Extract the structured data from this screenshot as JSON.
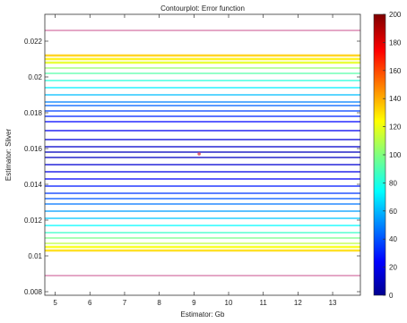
{
  "chart_data": {
    "type": "contour",
    "title": "Contourplot: Error function",
    "xlabel": "Estimator: Gb",
    "ylabel": "Estimator: Sliver",
    "xlim": [
      4.7,
      13.8
    ],
    "ylim": [
      0.0078,
      0.0235
    ],
    "x_ticks": [
      5,
      6,
      7,
      8,
      9,
      10,
      11,
      12,
      13
    ],
    "y_ticks": [
      0.008,
      0.01,
      0.012,
      0.014,
      0.016,
      0.018,
      0.02,
      0.022
    ],
    "y_tick_labels": [
      "0.008",
      "0.01",
      "0.012",
      "0.014",
      "0.016",
      "0.018",
      "0.02",
      "0.022"
    ],
    "colorbar": {
      "range": [
        0,
        200
      ],
      "ticks": [
        0,
        20,
        40,
        60,
        80,
        100,
        120,
        140,
        160,
        180,
        200
      ],
      "colormap": "jet"
    },
    "grid": false,
    "minimum_marker": {
      "x": 9.15,
      "y": 0.0157,
      "color": "#e06070"
    },
    "contour_levels": [
      {
        "y": 0.0226,
        "value": 200
      },
      {
        "y": 0.0212,
        "value": 135
      },
      {
        "y": 0.021,
        "value": 128
      },
      {
        "y": 0.0208,
        "value": 120
      },
      {
        "y": 0.0205,
        "value": 105
      },
      {
        "y": 0.0202,
        "value": 92
      },
      {
        "y": 0.0198,
        "value": 82
      },
      {
        "y": 0.0194,
        "value": 72
      },
      {
        "y": 0.019,
        "value": 62
      },
      {
        "y": 0.0186,
        "value": 50
      },
      {
        "y": 0.0184,
        "value": 44
      },
      {
        "y": 0.0181,
        "value": 38
      },
      {
        "y": 0.0178,
        "value": 32
      },
      {
        "y": 0.0175,
        "value": 26
      },
      {
        "y": 0.017,
        "value": 22
      },
      {
        "y": 0.0165,
        "value": 18
      },
      {
        "y": 0.0161,
        "value": 15
      },
      {
        "y": 0.0158,
        "value": 12
      },
      {
        "y": 0.0155,
        "value": 13
      },
      {
        "y": 0.0151,
        "value": 16
      },
      {
        "y": 0.0147,
        "value": 20
      },
      {
        "y": 0.0143,
        "value": 24
      },
      {
        "y": 0.0139,
        "value": 30
      },
      {
        "y": 0.0135,
        "value": 36
      },
      {
        "y": 0.0132,
        "value": 42
      },
      {
        "y": 0.0129,
        "value": 48
      },
      {
        "y": 0.0125,
        "value": 56
      },
      {
        "y": 0.0121,
        "value": 64
      },
      {
        "y": 0.0117,
        "value": 74
      },
      {
        "y": 0.0113,
        "value": 86
      },
      {
        "y": 0.011,
        "value": 98
      },
      {
        "y": 0.0107,
        "value": 112
      },
      {
        "y": 0.0105,
        "value": 124
      },
      {
        "y": 0.0103,
        "value": 132
      },
      {
        "y": 0.0089,
        "value": 200
      }
    ]
  }
}
